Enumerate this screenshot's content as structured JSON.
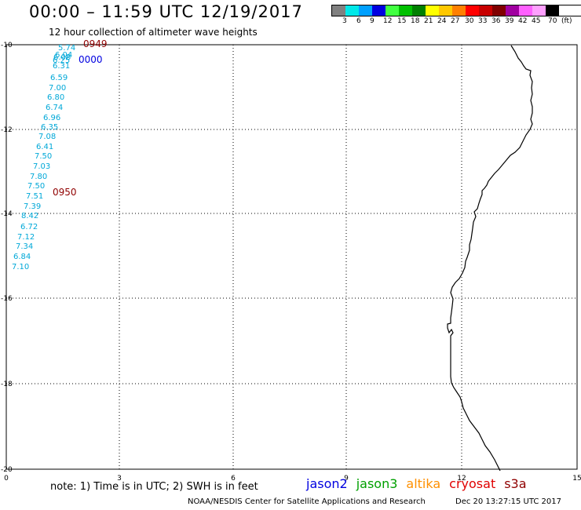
{
  "title": "00:00 – 11:59 UTC 12/19/2017",
  "subtitle": "12 hour collection of altimeter wave heights",
  "legend": {
    "colors": [
      "#808080",
      "#00e8e8",
      "#00a0ff",
      "#0000e0",
      "#40ff40",
      "#00c000",
      "#008000",
      "#ffff00",
      "#ffc800",
      "#ff8000",
      "#ff0000",
      "#c80000",
      "#800000",
      "#a000a0",
      "#ff60ff",
      "#ffa0ff",
      "#000000"
    ],
    "labels": [
      "3",
      "6",
      "9",
      "12",
      "15",
      "18",
      "21",
      "24",
      "27",
      "30",
      "33",
      "36",
      "39",
      "42",
      "45",
      "70",
      "(ft)"
    ]
  },
  "map": {
    "y_ticks": [
      "10",
      "12",
      "14",
      "16",
      "18",
      "20"
    ],
    "x_ticks": [
      "0",
      "3",
      "6",
      "9",
      "12",
      "15"
    ],
    "wave_color": "#00a8d8",
    "wave_values": [
      "5.74",
      "6.04",
      "6.08",
      "6.25",
      "6.31",
      "6.59",
      "7.00",
      "6.80",
      "6.74",
      "6.96",
      "6.35",
      "7.08",
      "6.41",
      "7.50",
      "7.03",
      "7.80",
      "7.50",
      "7.51",
      "7.39",
      "8.42",
      "6.72",
      "7.12",
      "7.34",
      "6.84",
      "7.10"
    ],
    "times": [
      {
        "label": "0949",
        "color": "#900000"
      },
      {
        "label": "0000",
        "color": "#0000e0"
      },
      {
        "label": "0950",
        "color": "#900000"
      }
    ]
  },
  "note": "note: 1) Time is in UTC; 2) SWH is in feet",
  "satellites": [
    {
      "name": "jason2",
      "color": "#0000e0"
    },
    {
      "name": "jason3",
      "color": "#00a000"
    },
    {
      "name": "altika",
      "color": "#ff9000"
    },
    {
      "name": "cryosat",
      "color": "#e00000"
    },
    {
      "name": "s3a",
      "color": "#900000"
    }
  ],
  "footer": {
    "agency": "NOAA/NESDIS Center for Satellite Applications and Research",
    "timestamp": "Dec 20 13:27:15 UTC 2017"
  }
}
